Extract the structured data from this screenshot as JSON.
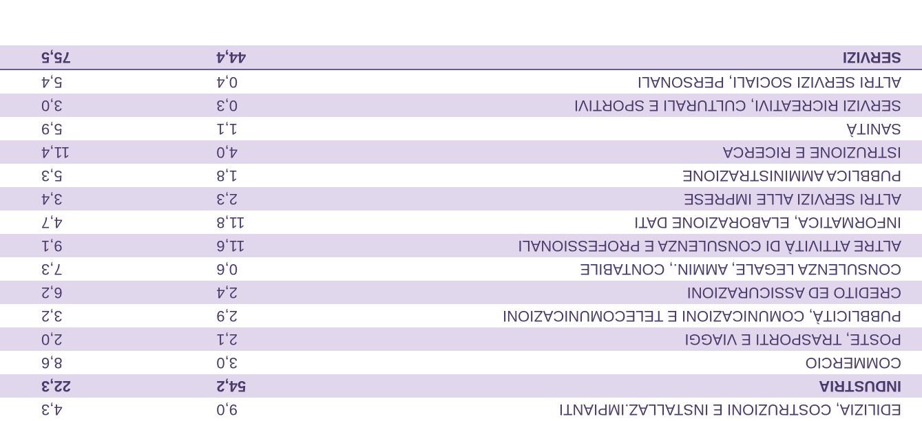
{
  "table": {
    "colors": {
      "shaded_bg": "#e1d7ec",
      "plain_bg": "#ffffff",
      "text": "#4a3b6d",
      "border": "#6b5aa0"
    },
    "font": {
      "family": "Arial, Helvetica, sans-serif",
      "size": 22,
      "bold_weight": "bold"
    },
    "rows": [
      {
        "label": "EDILIZIA, COSTRUZIONI E INSTALLAZ.IMPIANTI",
        "val1": "9,0",
        "val2": "4,3",
        "shaded": false,
        "bold": false,
        "partial": true
      },
      {
        "label": "INDUSTRIA",
        "val1": "54,2",
        "val2": "22,3",
        "shaded": true,
        "bold": true
      },
      {
        "label": "COMMERCIO",
        "val1": "3,0",
        "val2": "8,6",
        "shaded": false,
        "bold": false
      },
      {
        "label": "POSTE, TRASPORTI E VIAGGI",
        "val1": "2,1",
        "val2": "2,0",
        "shaded": true,
        "bold": false
      },
      {
        "label": "PUBBLICITÀ, COMUNICAZIONI E TELECOMUNICAZIONI",
        "val1": "2,9",
        "val2": "3,2",
        "shaded": false,
        "bold": false
      },
      {
        "label": "CREDITO ED ASSICURAZIONI",
        "val1": "2,4",
        "val2": "6,2",
        "shaded": true,
        "bold": false
      },
      {
        "label": "CONSULENZA LEGALE, AMMIN., CONTABILE",
        "val1": "0,6",
        "val2": "7,3",
        "shaded": false,
        "bold": false
      },
      {
        "label": "ALTRE ATTIVITÀ DI CONSULENZA E PROFESSIONALI",
        "val1": "11,6",
        "val2": "9,1",
        "shaded": true,
        "bold": false
      },
      {
        "label": "INFORMATICA, ELABORAZIONE DATI",
        "val1": "11,8",
        "val2": "4,7",
        "shaded": false,
        "bold": false
      },
      {
        "label": "ALTRI SERVIZI ALLE IMPRESE",
        "val1": "2,3",
        "val2": "3,4",
        "shaded": true,
        "bold": false
      },
      {
        "label": "PUBBLICA AMMINISTRAZIONE",
        "val1": "1,8",
        "val2": "5,3",
        "shaded": false,
        "bold": false
      },
      {
        "label": "ISTRUZIONE E RICERCA",
        "val1": "4,0",
        "val2": "11,4",
        "shaded": true,
        "bold": false
      },
      {
        "label": "SANITÀ",
        "val1": "1,1",
        "val2": "5,9",
        "shaded": false,
        "bold": false
      },
      {
        "label": "SERVIZI RICREATIVI, CULTURALI E SPORTIVI",
        "val1": "0,3",
        "val2": "3,0",
        "shaded": true,
        "bold": false
      },
      {
        "label": "ALTRI SERVIZI SOCIALI, PERSONALI",
        "val1": "0,4",
        "val2": "5,4",
        "shaded": false,
        "bold": false
      },
      {
        "label": "SERVIZI",
        "val1": "44,4",
        "val2": "75,5",
        "shaded": true,
        "bold": true,
        "topBorder": true
      }
    ]
  }
}
